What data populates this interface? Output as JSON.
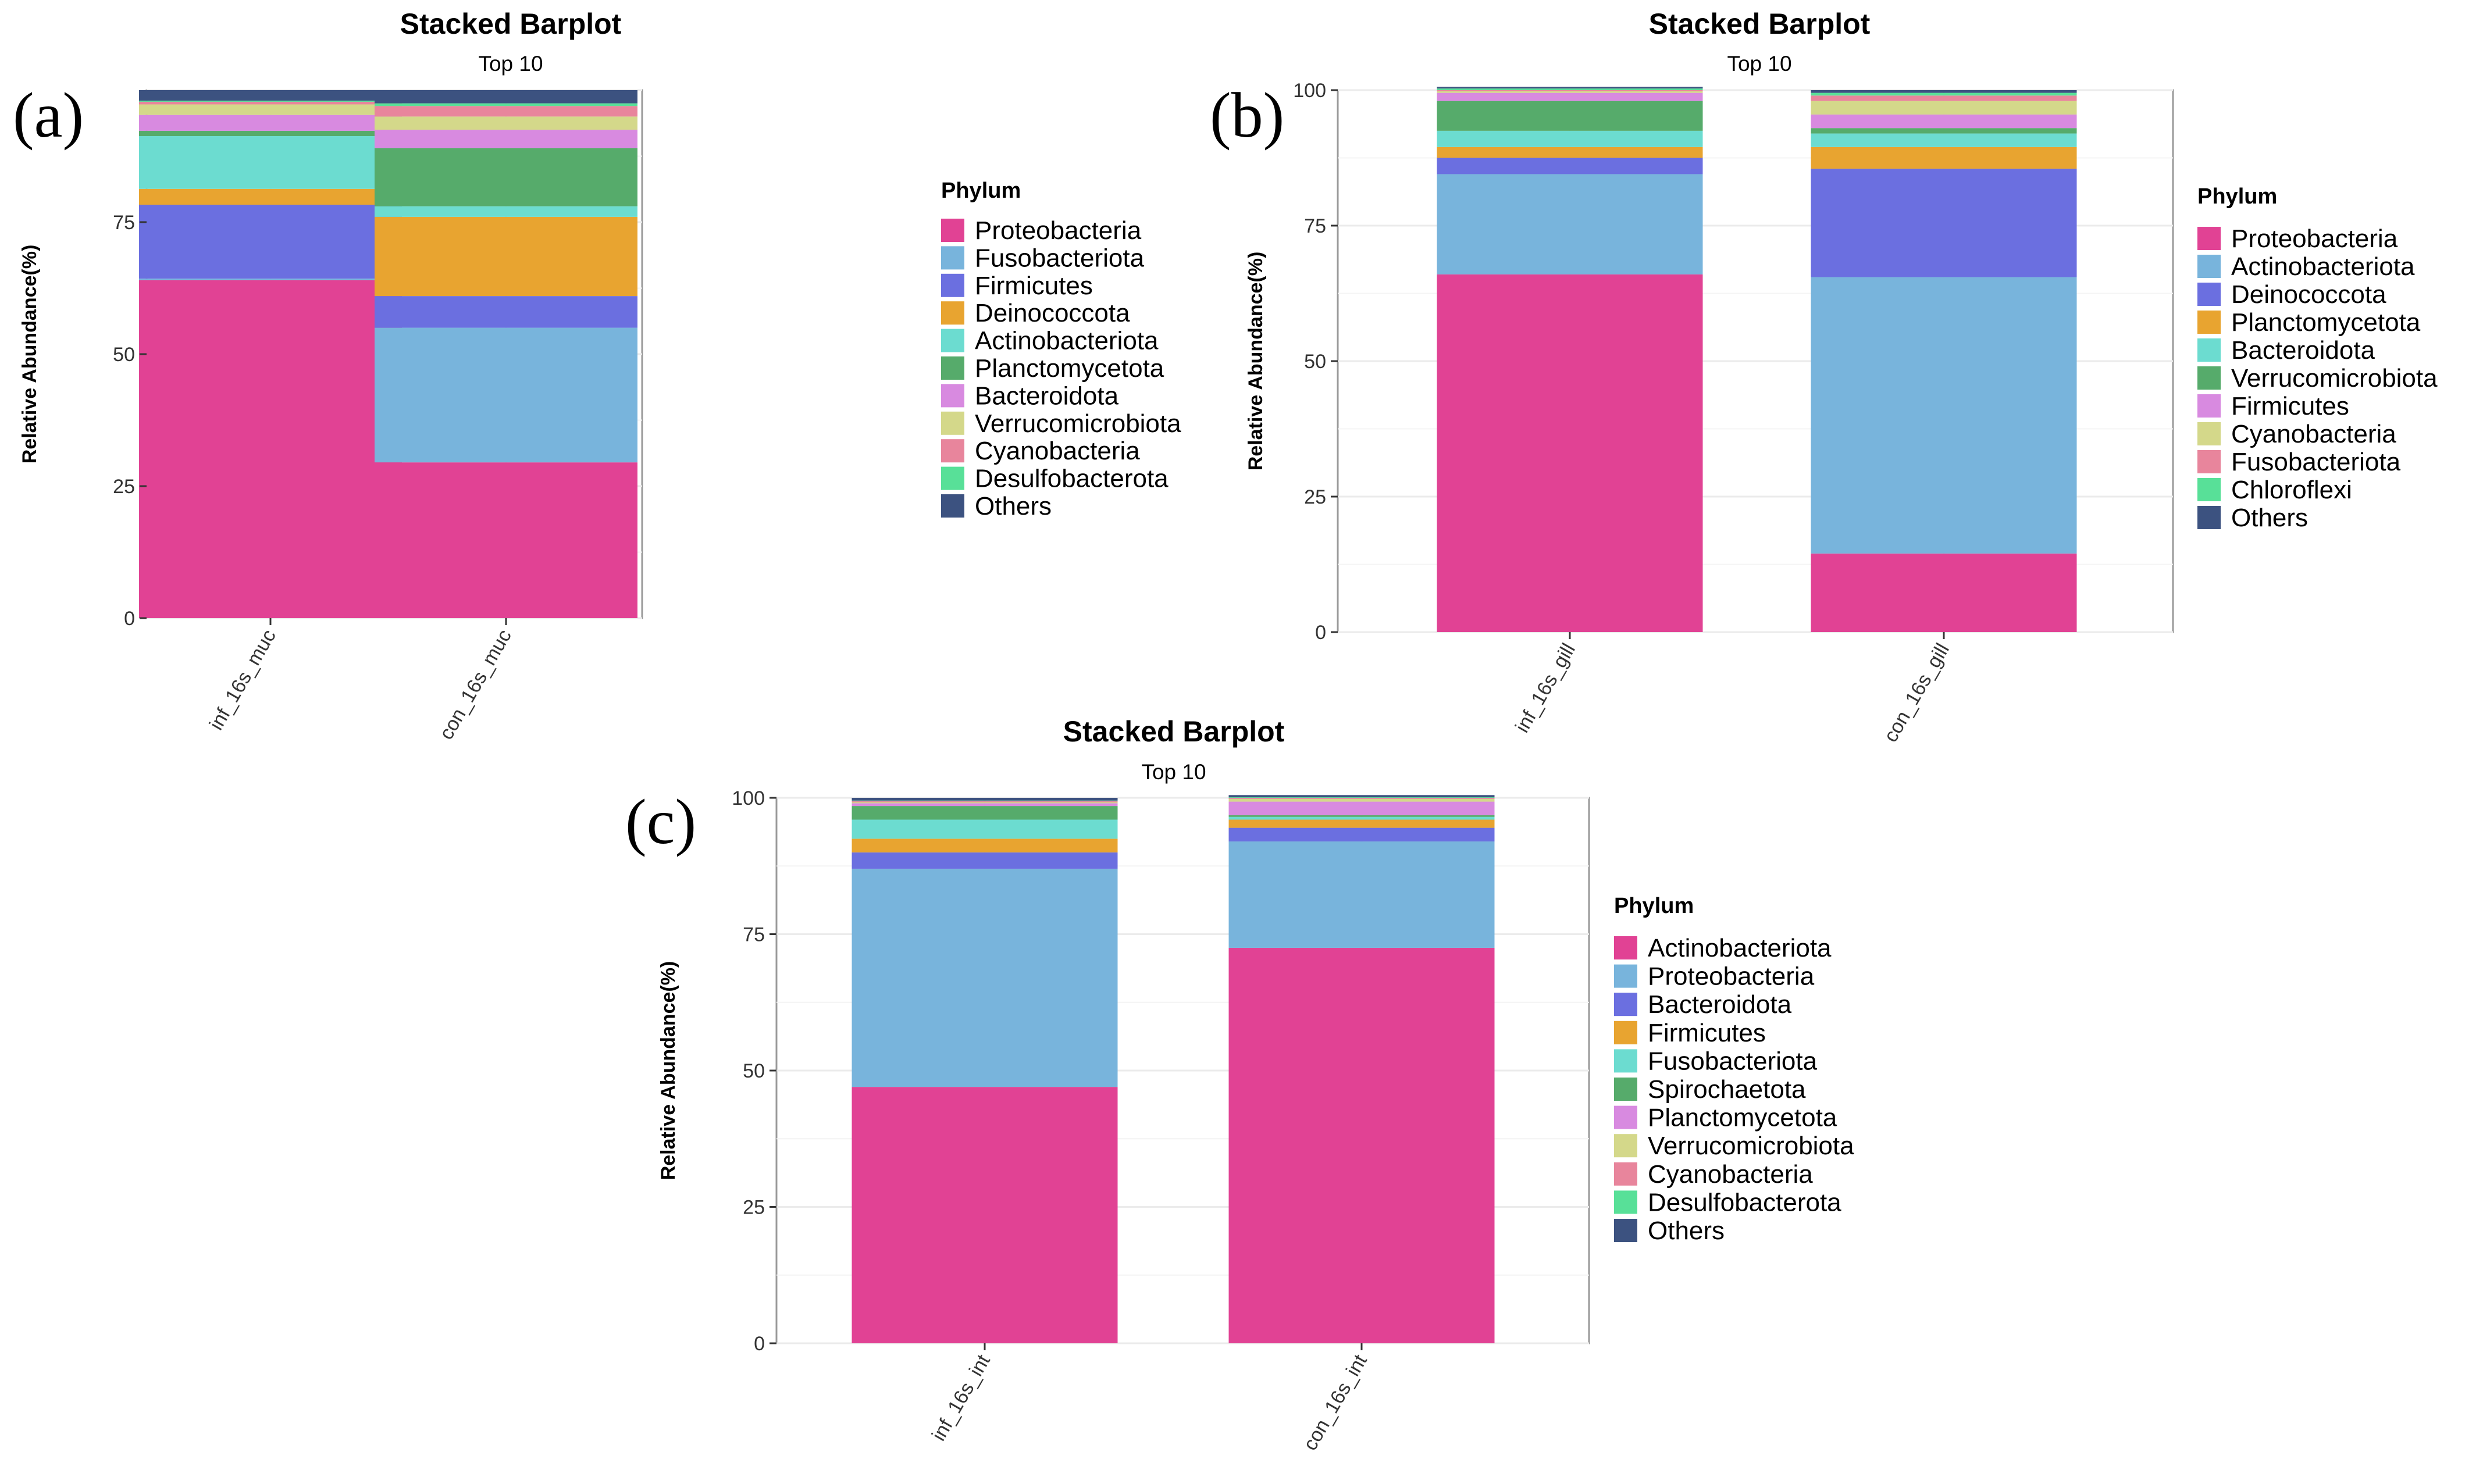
{
  "chart_data": [
    {
      "panel_letter": "(a)",
      "type": "bar",
      "stacked": true,
      "title": "Stacked Barplot",
      "subtitle": "Top 10",
      "ylabel": "Relative Abundance(%)",
      "xlabel": "",
      "ylim": [
        0,
        100
      ],
      "yticks": [
        0,
        25,
        50,
        75
      ],
      "grid": true,
      "legend_title": "Phylum",
      "legend_position": "right",
      "categories": [
        "inf_16s_muc",
        "con_16s_muc"
      ],
      "series": [
        {
          "name": "Proteobacteria",
          "color": "#e14294",
          "values": [
            64,
            29.5
          ]
        },
        {
          "name": "Fusobacteriota",
          "color": "#78b4dc",
          "values": [
            0.3,
            25.5
          ]
        },
        {
          "name": "Firmicutes",
          "color": "#6b6fe0",
          "values": [
            14,
            6
          ]
        },
        {
          "name": "Deinococcota",
          "color": "#e8a430",
          "values": [
            3,
            15
          ]
        },
        {
          "name": "Actinobacteriota",
          "color": "#6cdcd0",
          "values": [
            10,
            2
          ]
        },
        {
          "name": "Planctomycetota",
          "color": "#56ab6b",
          "values": [
            1,
            11
          ]
        },
        {
          "name": "Bacteroidota",
          "color": "#d88ae0",
          "values": [
            3,
            3.5
          ]
        },
        {
          "name": "Verrucomicrobiota",
          "color": "#d4d88a",
          "values": [
            2,
            2.5
          ]
        },
        {
          "name": "Cyanobacteria",
          "color": "#e8859c",
          "values": [
            0.5,
            2
          ]
        },
        {
          "name": "Desulfobacterota",
          "color": "#58e098",
          "values": [
            0.2,
            0.5
          ]
        },
        {
          "name": "Others",
          "color": "#3c5280",
          "values": [
            2,
            2.5
          ]
        }
      ]
    },
    {
      "panel_letter": "(b)",
      "type": "bar",
      "stacked": true,
      "title": "Stacked Barplot",
      "subtitle": "Top 10",
      "ylabel": "Relative Abundance(%)",
      "xlabel": "",
      "ylim": [
        0,
        100
      ],
      "yticks": [
        0,
        25,
        50,
        75,
        100
      ],
      "grid": true,
      "legend_title": "Phylum",
      "legend_position": "right",
      "categories": [
        "inf_16s_gill",
        "con_16s_gill"
      ],
      "series": [
        {
          "name": "Proteobacteria",
          "color": "#e14294",
          "values": [
            66,
            14.5
          ]
        },
        {
          "name": "Actinobacteriota",
          "color": "#78b4dc",
          "values": [
            18.5,
            51
          ]
        },
        {
          "name": "Deinococcota",
          "color": "#6b6fe0",
          "values": [
            3,
            20
          ]
        },
        {
          "name": "Planctomycetota",
          "color": "#e8a430",
          "values": [
            2,
            4
          ]
        },
        {
          "name": "Bacteroidota",
          "color": "#6cdcd0",
          "values": [
            3,
            2.5
          ]
        },
        {
          "name": "Verrucomicrobiota",
          "color": "#56ab6b",
          "values": [
            5.5,
            1
          ]
        },
        {
          "name": "Firmicutes",
          "color": "#d88ae0",
          "values": [
            1.5,
            2.5
          ]
        },
        {
          "name": "Cyanobacteria",
          "color": "#d4d88a",
          "values": [
            0.3,
            2.5
          ]
        },
        {
          "name": "Fusobacteriota",
          "color": "#e8859c",
          "values": [
            0.2,
            1
          ]
        },
        {
          "name": "Chloroflexi",
          "color": "#58e098",
          "values": [
            0.3,
            0.5
          ]
        },
        {
          "name": "Others",
          "color": "#3c5280",
          "values": [
            0.3,
            0.5
          ]
        }
      ]
    },
    {
      "panel_letter": "(c)",
      "type": "bar",
      "stacked": true,
      "title": "Stacked Barplot",
      "subtitle": "Top 10",
      "ylabel": "Relative Abundance(%)",
      "xlabel": "",
      "ylim": [
        0,
        100
      ],
      "yticks": [
        0,
        25,
        50,
        75,
        100
      ],
      "grid": true,
      "legend_title": "Phylum",
      "legend_position": "right",
      "categories": [
        "inf_16s_int",
        "con_16s_int"
      ],
      "series": [
        {
          "name": "Actinobacteriota",
          "color": "#e14294",
          "values": [
            47,
            72.5
          ]
        },
        {
          "name": "Proteobacteria",
          "color": "#78b4dc",
          "values": [
            40,
            19.5
          ]
        },
        {
          "name": "Bacteroidota",
          "color": "#6b6fe0",
          "values": [
            3,
            2.5
          ]
        },
        {
          "name": "Firmicutes",
          "color": "#e8a430",
          "values": [
            2.5,
            1.5
          ]
        },
        {
          "name": "Fusobacteriota",
          "color": "#6cdcd0",
          "values": [
            3.5,
            0.5
          ]
        },
        {
          "name": "Spirochaetota",
          "color": "#56ab6b",
          "values": [
            2.5,
            0.3
          ]
        },
        {
          "name": "Planctomycetota",
          "color": "#d88ae0",
          "values": [
            0.5,
            2.5
          ]
        },
        {
          "name": "Verrucomicrobiota",
          "color": "#d4d88a",
          "values": [
            0.2,
            0.5
          ]
        },
        {
          "name": "Cyanobacteria",
          "color": "#e8859c",
          "values": [
            0.2,
            0.2
          ]
        },
        {
          "name": "Desulfobacterota",
          "color": "#58e098",
          "values": [
            0.1,
            0.1
          ]
        },
        {
          "name": "Others",
          "color": "#3c5280",
          "values": [
            0.5,
            0.4
          ]
        }
      ]
    }
  ]
}
